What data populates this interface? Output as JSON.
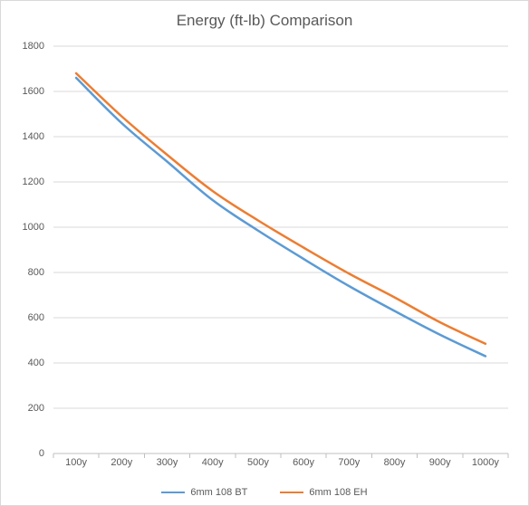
{
  "chart": {
    "type": "line",
    "title": "Energy (ft-lb) Comparison",
    "title_fontsize": 17,
    "title_color": "#595959",
    "background_color": "#ffffff",
    "plot_border_color": "#d9d9d9",
    "grid_color": "#d9d9d9",
    "axis_line_color": "#bfbfbf",
    "tick_label_color": "#595959",
    "tick_label_fontsize": 11,
    "x": {
      "categories": [
        "100y",
        "200y",
        "300y",
        "400y",
        "500y",
        "600y",
        "700y",
        "800y",
        "900y",
        "1000y"
      ],
      "category_spacing": "between-ticks"
    },
    "y": {
      "min": 0,
      "max": 1800,
      "tick_step": 200,
      "ticks": [
        0,
        200,
        400,
        600,
        800,
        1000,
        1200,
        1400,
        1600,
        1800
      ]
    },
    "series": [
      {
        "name": "6mm 108 BT",
        "color": "#5b9bd5",
        "line_width": 2.5,
        "x": [
          "100y",
          "200y",
          "300y",
          "400y",
          "500y",
          "600y",
          "700y",
          "800y",
          "900y",
          "1000y"
        ],
        "y": [
          1660,
          1460,
          1290,
          1120,
          985,
          860,
          740,
          630,
          525,
          430
        ]
      },
      {
        "name": "6mm 108 EH",
        "color": "#ed7d31",
        "line_width": 2.5,
        "x": [
          "100y",
          "200y",
          "300y",
          "400y",
          "500y",
          "600y",
          "700y",
          "800y",
          "900y",
          "1000y"
        ],
        "y": [
          1680,
          1490,
          1320,
          1160,
          1030,
          910,
          795,
          690,
          580,
          485
        ]
      }
    ],
    "legend": {
      "position": "bottom",
      "fontsize": 11,
      "color": "#595959"
    }
  }
}
